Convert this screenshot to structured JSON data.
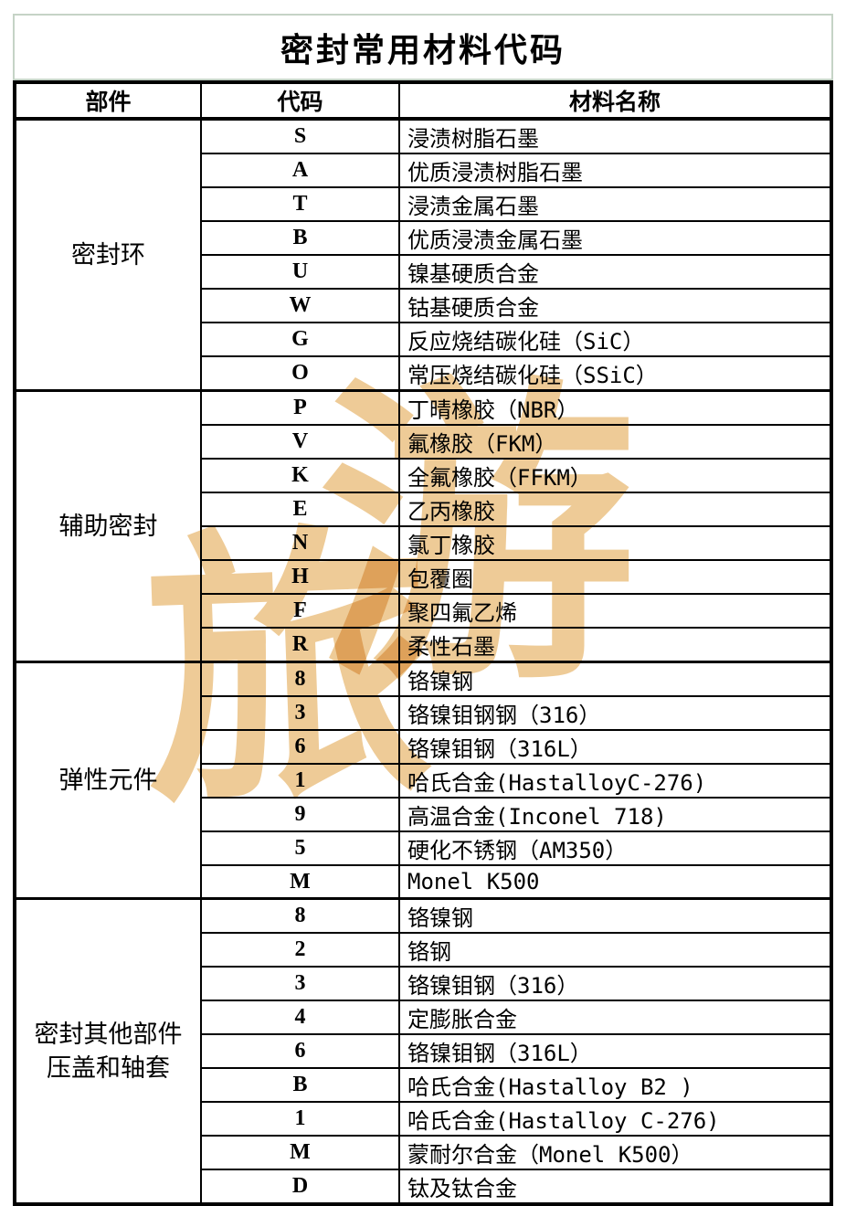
{
  "title": "密封常用材料代码",
  "watermark": {
    "char1": "旅",
    "char2": "游"
  },
  "colors": {
    "title_border_green": "#c5d3c6",
    "table_border": "#000000",
    "watermark_tan": "#eecb97",
    "background": "#ffffff"
  },
  "table": {
    "headers": [
      "部件",
      "代码",
      "材料名称"
    ],
    "groups": [
      {
        "part": "密封环",
        "rows": [
          {
            "code": "S",
            "name": "浸渍树脂石墨"
          },
          {
            "code": "A",
            "name": "优质浸渍树脂石墨"
          },
          {
            "code": "T",
            "name": "浸渍金属石墨"
          },
          {
            "code": "B",
            "name": "优质浸渍金属石墨"
          },
          {
            "code": "U",
            "name": "镍基硬质合金"
          },
          {
            "code": "W",
            "name": "钴基硬质合金"
          },
          {
            "code": "G",
            "name": "反应烧结碳化硅（SiC）"
          },
          {
            "code": "O",
            "name": "常压烧结碳化硅（SSiC）"
          }
        ]
      },
      {
        "part": "辅助密封",
        "rows": [
          {
            "code": "P",
            "name": "丁晴橡胶（NBR）"
          },
          {
            "code": "V",
            "name": "氟橡胶（FKM）"
          },
          {
            "code": "K",
            "name": "全氟橡胶（FFKM）"
          },
          {
            "code": "E",
            "name": "乙丙橡胶"
          },
          {
            "code": "N",
            "name": "氯丁橡胶"
          },
          {
            "code": "H",
            "name": "包覆圈"
          },
          {
            "code": "F",
            "name": "聚四氟乙烯"
          },
          {
            "code": "R",
            "name": "柔性石墨"
          }
        ]
      },
      {
        "part": "弹性元件",
        "rows": [
          {
            "code": "8",
            "name": "铬镍钢"
          },
          {
            "code": "3",
            "name": "铬镍钼钢钢（316）"
          },
          {
            "code": "6",
            "name": "铬镍钼钢（316L）"
          },
          {
            "code": "1",
            "name": "哈氏合金(HastalloyC-276)"
          },
          {
            "code": "9",
            "name": "高温合金(Inconel 718)"
          },
          {
            "code": "5",
            "name": "硬化不锈钢（AM350）"
          },
          {
            "code": "M",
            "name": "Monel K500"
          }
        ]
      },
      {
        "part": "密封其他部件\n压盖和轴套",
        "rows": [
          {
            "code": "8",
            "name": "铬镍钢"
          },
          {
            "code": "2",
            "name": "铬钢"
          },
          {
            "code": "3",
            "name": "铬镍钼钢（316）"
          },
          {
            "code": "4",
            "name": "定膨胀合金"
          },
          {
            "code": "6",
            "name": "铬镍钼钢（316L）"
          },
          {
            "code": "B",
            "name": "哈氏合金(Hastalloy B2 )"
          },
          {
            "code": "1",
            "name": "哈氏合金(Hastalloy C-276)"
          },
          {
            "code": "M",
            "name": "蒙耐尔合金（Monel K500）"
          },
          {
            "code": "D",
            "name": "钛及钛合金"
          }
        ]
      }
    ]
  }
}
